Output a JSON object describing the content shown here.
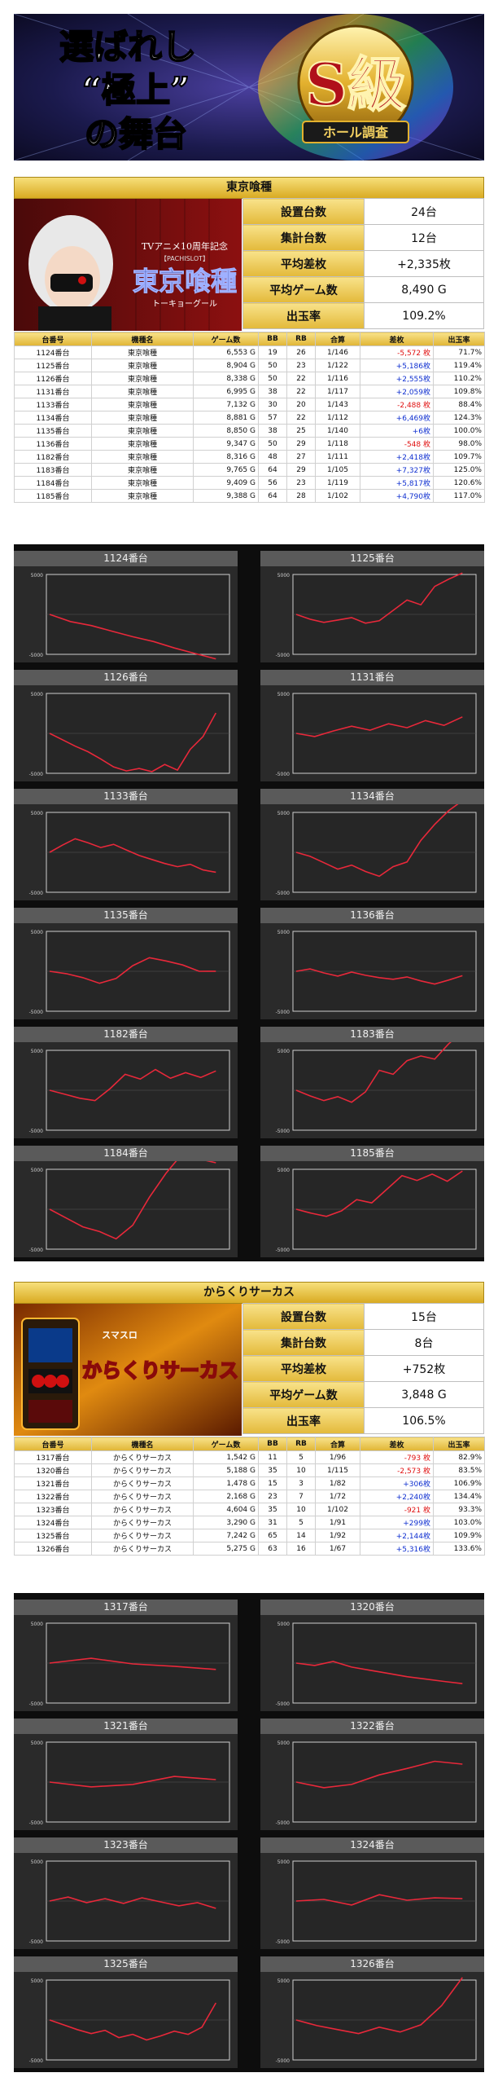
{
  "banner": {
    "title_line1": "選ばれし",
    "title_line2": "“極上”",
    "title_line3": "の舞台",
    "badge": "S級",
    "badge_sub": "ホール調査"
  },
  "sections": [
    {
      "title": "東京喰種",
      "image_caption": "TVアニメ10周年記念",
      "image_subcaption": "【PACHISLOT】",
      "image_logo": "東京喰種",
      "image_logo_sub": "トーキョーグール",
      "stats": [
        {
          "label": "設置台数",
          "value": "24台"
        },
        {
          "label": "集計台数",
          "value": "12台"
        },
        {
          "label": "平均差枚",
          "value": "+2,335枚"
        },
        {
          "label": "平均ゲーム数",
          "value": "8,490 G"
        },
        {
          "label": "出玉率",
          "value": "109.2%"
        }
      ],
      "headers": [
        "台番号",
        "機種名",
        "ゲーム数",
        "BB",
        "RB",
        "合算",
        "差枚",
        "出玉率"
      ],
      "rows": [
        {
          "no": "1124番台",
          "name": "東京喰種",
          "games": "6,553 G",
          "bb": "19",
          "rb": "26",
          "ratio": "1/146",
          "diff": "-5,572 枚",
          "rate": "71.7%"
        },
        {
          "no": "1125番台",
          "name": "東京喰種",
          "games": "8,904 G",
          "bb": "50",
          "rb": "23",
          "ratio": "1/122",
          "diff": "+5,186枚",
          "rate": "119.4%"
        },
        {
          "no": "1126番台",
          "name": "東京喰種",
          "games": "8,338 G",
          "bb": "50",
          "rb": "22",
          "ratio": "1/116",
          "diff": "+2,555枚",
          "rate": "110.2%"
        },
        {
          "no": "1131番台",
          "name": "東京喰種",
          "games": "6,995 G",
          "bb": "38",
          "rb": "22",
          "ratio": "1/117",
          "diff": "+2,059枚",
          "rate": "109.8%"
        },
        {
          "no": "1133番台",
          "name": "東京喰種",
          "games": "7,132 G",
          "bb": "30",
          "rb": "20",
          "ratio": "1/143",
          "diff": "-2,488 枚",
          "rate": "88.4%"
        },
        {
          "no": "1134番台",
          "name": "東京喰種",
          "games": "8,881 G",
          "bb": "57",
          "rb": "22",
          "ratio": "1/112",
          "diff": "+6,469枚",
          "rate": "124.3%"
        },
        {
          "no": "1135番台",
          "name": "東京喰種",
          "games": "8,850 G",
          "bb": "38",
          "rb": "25",
          "ratio": "1/140",
          "diff": "+6枚",
          "rate": "100.0%"
        },
        {
          "no": "1136番台",
          "name": "東京喰種",
          "games": "9,347 G",
          "bb": "50",
          "rb": "29",
          "ratio": "1/118",
          "diff": "-548 枚",
          "rate": "98.0%"
        },
        {
          "no": "1182番台",
          "name": "東京喰種",
          "games": "8,316 G",
          "bb": "48",
          "rb": "27",
          "ratio": "1/111",
          "diff": "+2,418枚",
          "rate": "109.7%"
        },
        {
          "no": "1183番台",
          "name": "東京喰種",
          "games": "9,765 G",
          "bb": "64",
          "rb": "29",
          "ratio": "1/105",
          "diff": "+7,327枚",
          "rate": "125.0%"
        },
        {
          "no": "1184番台",
          "name": "東京喰種",
          "games": "9,409 G",
          "bb": "56",
          "rb": "23",
          "ratio": "1/119",
          "diff": "+5,817枚",
          "rate": "120.6%"
        },
        {
          "no": "1185番台",
          "name": "東京喰種",
          "games": "9,388 G",
          "bb": "64",
          "rb": "28",
          "ratio": "1/102",
          "diff": "+4,790枚",
          "rate": "117.0%"
        }
      ],
      "charts": [
        {
          "title": "1124番台",
          "axis_top": "5000",
          "axis_bottom": "-5000",
          "values": [
            0,
            -900,
            -1400,
            -2100,
            -2800,
            -3400,
            -4200,
            -4900,
            -5572
          ]
        },
        {
          "title": "1125番台",
          "axis_top": "5000",
          "axis_bottom": "-5000",
          "values": [
            0,
            -600,
            -1000,
            -700,
            -400,
            -1100,
            -800,
            500,
            1800,
            1200,
            3500,
            4400,
            5186
          ]
        },
        {
          "title": "1126番台",
          "axis_top": "5000",
          "axis_bottom": "-5000",
          "values": [
            0,
            -800,
            -1600,
            -2300,
            -3200,
            -4200,
            -4700,
            -4400,
            -4800,
            -3900,
            -4600,
            -2000,
            -400,
            2555
          ]
        },
        {
          "title": "1131番台",
          "axis_top": "5000",
          "axis_bottom": "-5000",
          "values": [
            0,
            -400,
            300,
            900,
            400,
            1200,
            700,
            1600,
            1000,
            2059
          ]
        },
        {
          "title": "1133番台",
          "axis_top": "5000",
          "axis_bottom": "-5000",
          "values": [
            0,
            900,
            1700,
            1200,
            600,
            1000,
            300,
            -400,
            -900,
            -1400,
            -1800,
            -1500,
            -2200,
            -2488
          ]
        },
        {
          "title": "1134番台",
          "axis_top": "5000",
          "axis_bottom": "-5000",
          "values": [
            0,
            -500,
            -1300,
            -2100,
            -1600,
            -2400,
            -3000,
            -1800,
            -1200,
            1500,
            3500,
            5200,
            6469
          ]
        },
        {
          "title": "1135番台",
          "axis_top": "5000",
          "axis_bottom": "-5000",
          "values": [
            0,
            -300,
            -800,
            -1500,
            -900,
            700,
            1700,
            1300,
            800,
            0,
            6
          ]
        },
        {
          "title": "1136番台",
          "axis_top": "5000",
          "axis_bottom": "-5000",
          "values": [
            0,
            300,
            -200,
            -600,
            -100,
            -500,
            -800,
            -1000,
            -700,
            -1200,
            -1600,
            -1100,
            -548
          ]
        },
        {
          "title": "1182番台",
          "axis_top": "5000",
          "axis_bottom": "-5000",
          "values": [
            0,
            -500,
            -1000,
            -1300,
            200,
            2000,
            1400,
            2600,
            1500,
            2200,
            1600,
            2418
          ]
        },
        {
          "title": "1183番台",
          "axis_top": "5000",
          "axis_bottom": "-5000",
          "values": [
            0,
            -700,
            -1300,
            -800,
            -1500,
            -200,
            2500,
            2000,
            3700,
            4300,
            3900,
            5800,
            7327
          ]
        },
        {
          "title": "1184番台",
          "axis_top": "5000",
          "axis_bottom": "-5000",
          "values": [
            0,
            -1100,
            -2200,
            -2800,
            -3700,
            -2000,
            1500,
            4500,
            7000,
            6300,
            5817
          ]
        },
        {
          "title": "1185番台",
          "axis_top": "5000",
          "axis_bottom": "-5000",
          "values": [
            0,
            -500,
            -900,
            -200,
            1200,
            800,
            2500,
            4200,
            3600,
            4400,
            3500,
            4790
          ]
        }
      ]
    },
    {
      "title": "からくりサーカス",
      "image_caption": "スマスロ",
      "image_logo": "からくりサーカス",
      "stats": [
        {
          "label": "設置台数",
          "value": "15台"
        },
        {
          "label": "集計台数",
          "value": "8台"
        },
        {
          "label": "平均差枚",
          "value": "+752枚"
        },
        {
          "label": "平均ゲーム数",
          "value": "3,848 G"
        },
        {
          "label": "出玉率",
          "value": "106.5%"
        }
      ],
      "headers": [
        "台番号",
        "機種名",
        "ゲーム数",
        "BB",
        "RB",
        "合算",
        "差枚",
        "出玉率"
      ],
      "rows": [
        {
          "no": "1317番台",
          "name": "からくりサーカス",
          "games": "1,542 G",
          "bb": "11",
          "rb": "5",
          "ratio": "1/96",
          "diff": "-793 枚",
          "rate": "82.9%"
        },
        {
          "no": "1320番台",
          "name": "からくりサーカス",
          "games": "5,188 G",
          "bb": "35",
          "rb": "10",
          "ratio": "1/115",
          "diff": "-2,573 枚",
          "rate": "83.5%"
        },
        {
          "no": "1321番台",
          "name": "からくりサーカス",
          "games": "1,478 G",
          "bb": "15",
          "rb": "3",
          "ratio": "1/82",
          "diff": "+306枚",
          "rate": "106.9%"
        },
        {
          "no": "1322番台",
          "name": "からくりサーカス",
          "games": "2,168 G",
          "bb": "23",
          "rb": "7",
          "ratio": "1/72",
          "diff": "+2,240枚",
          "rate": "134.4%"
        },
        {
          "no": "1323番台",
          "name": "からくりサーカス",
          "games": "4,604 G",
          "bb": "35",
          "rb": "10",
          "ratio": "1/102",
          "diff": "-921 枚",
          "rate": "93.3%"
        },
        {
          "no": "1324番台",
          "name": "からくりサーカス",
          "games": "3,290 G",
          "bb": "31",
          "rb": "5",
          "ratio": "1/91",
          "diff": "+299枚",
          "rate": "103.0%"
        },
        {
          "no": "1325番台",
          "name": "からくりサーカス",
          "games": "7,242 G",
          "bb": "65",
          "rb": "14",
          "ratio": "1/92",
          "diff": "+2,144枚",
          "rate": "109.9%"
        },
        {
          "no": "1326番台",
          "name": "からくりサーカス",
          "games": "5,275 G",
          "bb": "63",
          "rb": "16",
          "ratio": "1/67",
          "diff": "+5,316枚",
          "rate": "133.6%"
        }
      ],
      "charts": [
        {
          "title": "1317番台",
          "axis_top": "5000",
          "axis_bottom": "-5000",
          "values": [
            0,
            600,
            -100,
            -400,
            -793
          ]
        },
        {
          "title": "1320番台",
          "axis_top": "5000",
          "axis_bottom": "-5000",
          "values": [
            0,
            -300,
            200,
            -500,
            -900,
            -1300,
            -1700,
            -2000,
            -2300,
            -2573
          ]
        },
        {
          "title": "1321番台",
          "axis_top": "5000",
          "axis_bottom": "-5000",
          "values": [
            0,
            -600,
            -300,
            700,
            306
          ]
        },
        {
          "title": "1322番台",
          "axis_top": "5000",
          "axis_bottom": "-5000",
          "values": [
            0,
            -700,
            -300,
            900,
            1700,
            2600,
            2240
          ]
        },
        {
          "title": "1323番台",
          "axis_top": "5000",
          "axis_bottom": "-5000",
          "values": [
            0,
            500,
            -200,
            300,
            -300,
            400,
            -100,
            -600,
            -200,
            -921
          ]
        },
        {
          "title": "1324番台",
          "axis_top": "5000",
          "axis_bottom": "-5000",
          "values": [
            0,
            200,
            -500,
            800,
            100,
            400,
            299
          ]
        },
        {
          "title": "1325番台",
          "axis_top": "5000",
          "axis_bottom": "-5000",
          "values": [
            0,
            -600,
            -1200,
            -1700,
            -1300,
            -2200,
            -1800,
            -2500,
            -2000,
            -1400,
            -1800,
            -900,
            2144
          ]
        },
        {
          "title": "1326番台",
          "axis_top": "5000",
          "axis_bottom": "-5000",
          "values": [
            0,
            -700,
            -1200,
            -1700,
            -900,
            -1500,
            -600,
            1800,
            5316
          ]
        }
      ]
    }
  ]
}
